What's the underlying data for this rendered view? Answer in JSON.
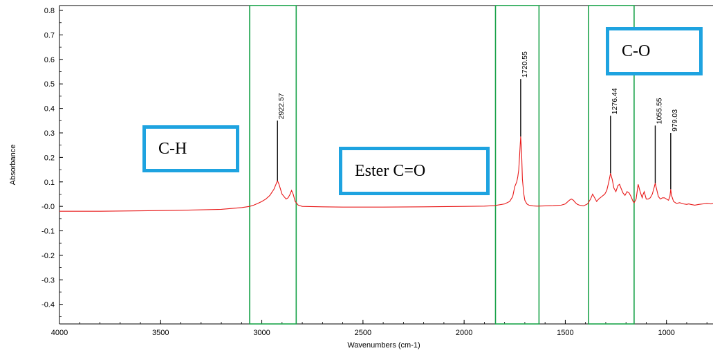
{
  "chart_data": {
    "type": "line",
    "xlabel": "Wavenumbers (cm-1)",
    "ylabel": "Absorbance",
    "xlim": [
      4000,
      770
    ],
    "ylim": [
      -0.48,
      0.82
    ],
    "x_ticks": [
      "4000",
      "3500",
      "3000",
      "2500",
      "2000",
      "1500",
      "1000"
    ],
    "y_ticks": [
      "0.8",
      "0.7",
      "0.6",
      "0.5",
      "0.4",
      "0.3",
      "0.2",
      "0.1",
      "-0.0",
      "-0.1",
      "-0.2",
      "-0.3",
      "-0.4"
    ],
    "line_color": "#e81818",
    "grid": false,
    "series": [
      {
        "x": [
          4000,
          3800,
          3600,
          3400,
          3200,
          3100,
          3060,
          3040,
          3020,
          3000,
          2980,
          2960,
          2940,
          2930,
          2922.57,
          2915,
          2900,
          2880,
          2870,
          2860,
          2853,
          2845,
          2835,
          2820,
          2800,
          2700,
          2600,
          2400,
          2200,
          2000,
          1900,
          1850,
          1800,
          1775,
          1760,
          1750,
          1745,
          1740,
          1735,
          1730,
          1725,
          1720.55,
          1716,
          1712,
          1705,
          1700,
          1690,
          1680,
          1660,
          1640,
          1600,
          1560,
          1520,
          1500,
          1480,
          1470,
          1460,
          1450,
          1440,
          1430,
          1410,
          1390,
          1375,
          1365,
          1355,
          1345,
          1335,
          1320,
          1305,
          1295,
          1285,
          1276.44,
          1268,
          1260,
          1250,
          1240,
          1232,
          1225,
          1215,
          1205,
          1195,
          1185,
          1175,
          1165,
          1160,
          1150,
          1140,
          1130,
          1120,
          1115,
          1110,
          1100,
          1090,
          1080,
          1070,
          1060,
          1055.55,
          1050,
          1040,
          1030,
          1020,
          1010,
          1000,
          990,
          983,
          979.03,
          975,
          965,
          950,
          935,
          915,
          900,
          890,
          880,
          860,
          840,
          820,
          800,
          780,
          770
        ],
        "y": [
          -0.02,
          -0.02,
          -0.018,
          -0.016,
          -0.012,
          -0.005,
          0.0,
          0.005,
          0.012,
          0.02,
          0.03,
          0.045,
          0.07,
          0.09,
          0.105,
          0.09,
          0.05,
          0.03,
          0.035,
          0.05,
          0.065,
          0.05,
          0.02,
          0.005,
          0.0,
          -0.002,
          -0.003,
          -0.003,
          -0.002,
          0.0,
          0.001,
          0.003,
          0.01,
          0.02,
          0.04,
          0.08,
          0.09,
          0.1,
          0.12,
          0.15,
          0.22,
          0.285,
          0.22,
          0.11,
          0.05,
          0.025,
          0.01,
          0.005,
          0.002,
          0.001,
          0.002,
          0.003,
          0.005,
          0.01,
          0.025,
          0.03,
          0.025,
          0.015,
          0.008,
          0.005,
          0.002,
          0.01,
          0.03,
          0.05,
          0.035,
          0.02,
          0.03,
          0.04,
          0.05,
          0.065,
          0.1,
          0.135,
          0.11,
          0.075,
          0.06,
          0.085,
          0.09,
          0.075,
          0.055,
          0.045,
          0.06,
          0.055,
          0.04,
          0.02,
          0.015,
          0.03,
          0.09,
          0.06,
          0.035,
          0.05,
          0.06,
          0.03,
          0.03,
          0.035,
          0.05,
          0.08,
          0.095,
          0.075,
          0.04,
          0.03,
          0.035,
          0.035,
          0.03,
          0.025,
          0.04,
          0.07,
          0.045,
          0.02,
          0.012,
          0.015,
          0.01,
          0.008,
          0.01,
          0.008,
          0.005,
          0.008,
          0.01,
          0.012,
          0.01,
          0.012
        ]
      }
    ],
    "peak_labels": [
      {
        "text": "2922.57",
        "x": 2922.57,
        "y_start": 0.105,
        "y_end": 0.35
      },
      {
        "text": "1720.55",
        "x": 1720.55,
        "y_start": 0.285,
        "y_end": 0.52
      },
      {
        "text": "1276.44",
        "x": 1276.44,
        "y_start": 0.135,
        "y_end": 0.37
      },
      {
        "text": "1055.55",
        "x": 1055.55,
        "y_start": 0.095,
        "y_end": 0.33
      },
      {
        "text": "979.03",
        "x": 979.03,
        "y_start": 0.07,
        "y_end": 0.3
      }
    ],
    "regions": [
      {
        "x_from": 3060,
        "x_to": 2830
      },
      {
        "x_from": 1845,
        "x_to": 1630
      },
      {
        "x_from": 1385,
        "x_to": 1160
      }
    ],
    "region_color": "#1aa34a",
    "label_box_color": "#1ea3e0",
    "annotations": [
      {
        "text": "C-H"
      },
      {
        "text": "Ester C=O"
      },
      {
        "text": "C-O"
      }
    ]
  }
}
